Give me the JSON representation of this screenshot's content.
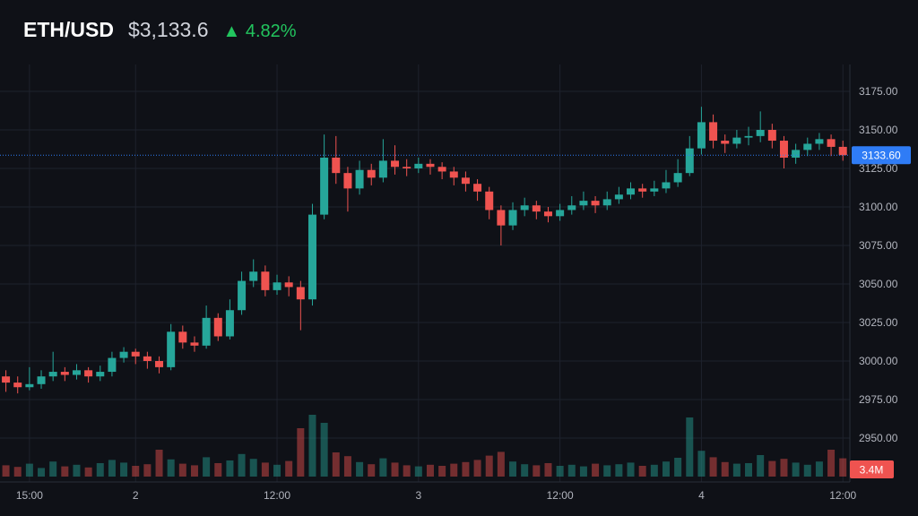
{
  "header": {
    "symbol": "ETH/USD",
    "price": "$3,133.6",
    "change_arrow": "▲",
    "change": "4.82%"
  },
  "colors": {
    "background": "#0f1117",
    "up": "#26a69a",
    "down": "#ef5350",
    "grid": "#1e222d",
    "last_price": "#2f7cf6",
    "axis_text": "#b2b5be"
  },
  "chart_data": {
    "type": "candlestick",
    "interval": "1h",
    "start": {
      "day": 1,
      "time": "13:00"
    },
    "ylim": [
      2935,
      3190
    ],
    "yticks": [
      "2950.00",
      "2975.00",
      "3000.00",
      "3025.00",
      "3050.00",
      "3075.00",
      "3100.00",
      "3125.00",
      "3150.00",
      "3175.00"
    ],
    "xticks": [
      {
        "label": "15:00",
        "day": 1,
        "time": "15:00"
      },
      {
        "label": "2",
        "day": 2,
        "time": "00:00"
      },
      {
        "label": "12:00",
        "day": 2,
        "time": "12:00"
      },
      {
        "label": "3",
        "day": 3,
        "time": "00:00"
      },
      {
        "label": "12:00",
        "day": 3,
        "time": "12:00"
      },
      {
        "label": "4",
        "day": 4,
        "time": "00:00"
      },
      {
        "label": "12:00",
        "day": 4,
        "time": "12:00"
      }
    ],
    "grid": true,
    "last_price": 3133.6,
    "last_price_label": "3133.60",
    "last_volume_label": "3.4M",
    "open": [
      2990,
      2986,
      2983,
      2985,
      2990,
      2993,
      2991,
      2994,
      2990,
      2993,
      3002,
      3006,
      3003,
      3000,
      2996,
      3019,
      3012,
      3010,
      3028,
      3016,
      3033,
      3052,
      3058,
      3046,
      3051,
      3048,
      3040,
      3095,
      3132,
      3122,
      3112,
      3124,
      3119,
      3130,
      3126,
      3125,
      3128,
      3126,
      3123,
      3119,
      3115,
      3110,
      3098,
      3088,
      3098,
      3101,
      3097,
      3094,
      3098,
      3101,
      3104,
      3101,
      3105,
      3108,
      3112,
      3110,
      3112,
      3116,
      3122,
      3138,
      3155,
      3143,
      3141,
      3145,
      3146,
      3150,
      3143,
      3132,
      3137,
      3141,
      3144,
      3139
    ],
    "high": [
      2994,
      2990,
      2996,
      2994,
      3006,
      2996,
      2998,
      2996,
      2997,
      3006,
      3009,
      3008,
      3006,
      3003,
      3024,
      3023,
      3016,
      3036,
      3031,
      3040,
      3058,
      3066,
      3062,
      3056,
      3055,
      3052,
      3102,
      3147,
      3146,
      3126,
      3130,
      3128,
      3144,
      3140,
      3131,
      3132,
      3131,
      3129,
      3126,
      3123,
      3118,
      3113,
      3101,
      3103,
      3106,
      3104,
      3100,
      3102,
      3107,
      3110,
      3107,
      3110,
      3113,
      3116,
      3115,
      3117,
      3124,
      3131,
      3146,
      3165,
      3160,
      3147,
      3150,
      3152,
      3162,
      3154,
      3146,
      3141,
      3145,
      3148,
      3147,
      3143
    ],
    "low": [
      2980,
      2979,
      2981,
      2982,
      2987,
      2987,
      2988,
      2986,
      2987,
      2990,
      2999,
      2998,
      2995,
      2992,
      2994,
      3008,
      3006,
      3008,
      3013,
      3014,
      3030,
      3048,
      3042,
      3043,
      3042,
      3020,
      3036,
      3092,
      3115,
      3097,
      3108,
      3114,
      3116,
      3121,
      3120,
      3122,
      3121,
      3118,
      3114,
      3110,
      3104,
      3092,
      3075,
      3085,
      3094,
      3092,
      3090,
      3091,
      3095,
      3098,
      3096,
      3098,
      3102,
      3105,
      3106,
      3107,
      3109,
      3113,
      3120,
      3134,
      3138,
      3135,
      3138,
      3140,
      3142,
      3138,
      3125,
      3128,
      3133,
      3137,
      3133,
      3130
    ],
    "close": [
      2986,
      2983,
      2985,
      2990,
      2993,
      2991,
      2994,
      2990,
      2993,
      3002,
      3006,
      3003,
      3000,
      2996,
      3019,
      3012,
      3010,
      3028,
      3016,
      3033,
      3052,
      3058,
      3046,
      3051,
      3048,
      3040,
      3095,
      3132,
      3122,
      3112,
      3124,
      3119,
      3130,
      3126,
      3125,
      3128,
      3126,
      3123,
      3119,
      3115,
      3110,
      3098,
      3088,
      3098,
      3101,
      3097,
      3094,
      3098,
      3101,
      3104,
      3101,
      3105,
      3108,
      3112,
      3110,
      3112,
      3116,
      3122,
      3138,
      3155,
      3143,
      3141,
      3145,
      3146,
      3150,
      3143,
      3132,
      3137,
      3141,
      3144,
      3139,
      3133.6
    ],
    "volume_m": [
      2.1,
      1.8,
      2.4,
      1.6,
      2.8,
      1.9,
      2.2,
      1.7,
      2.5,
      3.1,
      2.6,
      2.0,
      2.3,
      5.0,
      3.2,
      2.4,
      2.1,
      3.6,
      2.5,
      3.0,
      4.2,
      3.3,
      2.6,
      2.2,
      2.9,
      9.0,
      11.5,
      10.0,
      4.5,
      3.8,
      2.7,
      2.3,
      3.4,
      2.6,
      2.1,
      1.9,
      2.2,
      2.0,
      2.4,
      2.7,
      3.1,
      3.9,
      4.6,
      2.8,
      2.3,
      2.1,
      2.5,
      2.0,
      2.2,
      1.9,
      2.4,
      2.1,
      2.3,
      2.6,
      2.0,
      2.2,
      2.8,
      3.5,
      11.0,
      4.8,
      3.6,
      2.7,
      2.4,
      2.5,
      4.0,
      2.9,
      3.3,
      2.6,
      2.2,
      2.8,
      5.0,
      3.4
    ]
  }
}
